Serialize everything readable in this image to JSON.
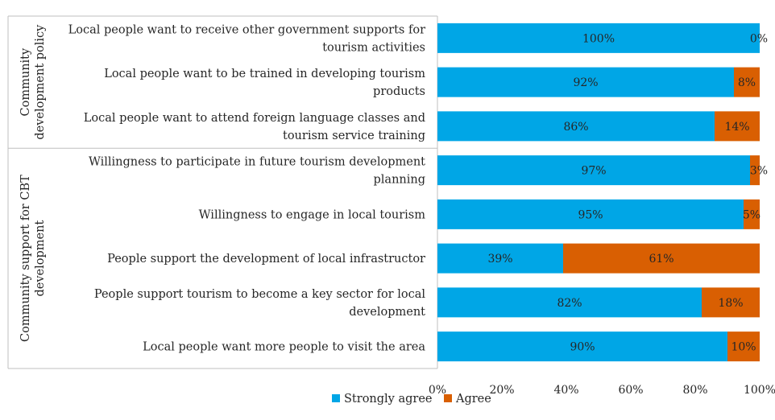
{
  "chart_data": {
    "type": "bar",
    "orientation": "horizontal",
    "stacked": true,
    "percent_stacked": true,
    "groups": [
      {
        "label": "Community development policy",
        "categories": [
          "Local people want to receive other government supports for tourism activities",
          "Local people want to be trained in developing tourism products",
          "Local people want to attend foreign language classes and tourism service training"
        ]
      },
      {
        "label": "Community support for CBT development",
        "categories": [
          "Willingness to participate in future tourism development planning",
          "Willingness to engage in local tourism",
          "People support the development of local infrastructor",
          "People support tourism to become a key sector for local development",
          "Local people want more people to visit the area"
        ]
      }
    ],
    "series": [
      {
        "name": "Strongly agree",
        "color": "#00a6e6",
        "values": [
          100,
          92,
          86,
          97,
          95,
          39,
          82,
          90
        ]
      },
      {
        "name": "Agree",
        "color": "#d95f02",
        "values": [
          0,
          8,
          14,
          3,
          5,
          61,
          18,
          10
        ]
      }
    ],
    "data_labels": [
      [
        "100%",
        "92%",
        "86%",
        "97%",
        "95%",
        "39%",
        "82%",
        "90%"
      ],
      [
        "0%",
        "8%",
        "14%",
        "3%",
        "5%",
        "61%",
        "18%",
        "10%"
      ]
    ],
    "xlim": [
      0,
      100
    ],
    "xticks": [
      "0%",
      "20%",
      "40%",
      "60%",
      "80%",
      "100%"
    ],
    "legend_position": "bottom",
    "grid": false
  }
}
